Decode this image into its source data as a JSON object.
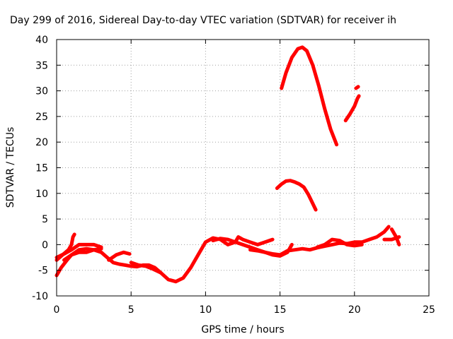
{
  "chart_data": {
    "type": "scatter",
    "title": "Day 299 of 2016, Sidereal Day-to-day VTEC variation (SDTVAR) for receiver ih",
    "xlabel": "GPS time / hours",
    "ylabel": "SDTVAR / TECUs",
    "xlim": [
      0,
      25
    ],
    "ylim": [
      -10,
      40
    ],
    "xticks": [
      "0",
      "5",
      "10",
      "15",
      "20",
      "25"
    ],
    "yticks": [
      "-10",
      "-5",
      "0",
      "5",
      "10",
      "15",
      "20",
      "25",
      "30",
      "35",
      "40"
    ],
    "grid": true,
    "marker_color": "#ff0000",
    "series": [
      {
        "segments": [
          [
            [
              0,
              -6
            ],
            [
              0.3,
              -4.5
            ],
            [
              0.7,
              -3
            ],
            [
              1.0,
              -2
            ],
            [
              1.5,
              -1
            ],
            [
              2,
              -0.8
            ],
            [
              2.5,
              -1
            ],
            [
              3,
              -1.5
            ],
            [
              3.4,
              -2.5
            ],
            [
              3.8,
              -3.5
            ],
            [
              4.2,
              -3.8
            ],
            [
              4.6,
              -4
            ],
            [
              5,
              -4.2
            ],
            [
              5.4,
              -4.3
            ],
            [
              5.8,
              -4
            ],
            [
              6.2,
              -4
            ],
            [
              6.6,
              -4.5
            ],
            [
              7,
              -5.5
            ],
            [
              7.5,
              -6.8
            ],
            [
              8,
              -7.2
            ],
            [
              8.5,
              -6.5
            ],
            [
              9,
              -4.5
            ],
            [
              9.5,
              -2
            ],
            [
              10,
              0.5
            ],
            [
              10.5,
              1.3
            ],
            [
              11,
              1
            ],
            [
              11.5,
              0
            ],
            [
              12,
              0.5
            ],
            [
              12.5,
              0
            ],
            [
              13,
              -0.5
            ],
            [
              13.5,
              -1
            ],
            [
              14,
              -1.5
            ],
            [
              14.5,
              -1.8
            ],
            [
              15,
              -2
            ],
            [
              15.5,
              -1.2
            ],
            [
              16,
              -1
            ],
            [
              16.5,
              -0.8
            ],
            [
              17,
              -1
            ],
            [
              17.5,
              -0.6
            ],
            [
              18,
              -0.3
            ],
            [
              18.5,
              0
            ],
            [
              19,
              0.3
            ],
            [
              19.5,
              0.2
            ],
            [
              20,
              0.5
            ],
            [
              20.5,
              0.5
            ],
            [
              21,
              1
            ],
            [
              21.5,
              1.5
            ],
            [
              22,
              2.5
            ],
            [
              22.3,
              3.5
            ]
          ],
          [
            [
              0,
              -2.5
            ],
            [
              0.5,
              -1.8
            ],
            [
              1,
              -1
            ],
            [
              1.5,
              0
            ],
            [
              2,
              0
            ],
            [
              2.5,
              0
            ],
            [
              3,
              -0.5
            ]
          ],
          [
            [
              0,
              -3
            ],
            [
              0.4,
              -2
            ],
            [
              0.8,
              -1
            ],
            [
              1,
              0
            ],
            [
              1.1,
              1.5
            ],
            [
              1.2,
              2
            ]
          ],
          [
            [
              0.5,
              -3
            ],
            [
              1,
              -2
            ],
            [
              1.5,
              -1.5
            ],
            [
              2,
              -1.5
            ],
            [
              2.5,
              -1
            ],
            [
              3,
              -0.8
            ]
          ],
          [
            [
              3.5,
              -3
            ],
            [
              4,
              -2
            ],
            [
              4.5,
              -1.5
            ],
            [
              4.9,
              -1.8
            ]
          ],
          [
            [
              5,
              -3.5
            ],
            [
              5.5,
              -4
            ],
            [
              6,
              -4.2
            ],
            [
              6.5,
              -4.8
            ],
            [
              7,
              -5.5
            ]
          ],
          [
            [
              10.5,
              0.8
            ],
            [
              11,
              1.2
            ],
            [
              11.5,
              1
            ],
            [
              12,
              0.5
            ],
            [
              12.2,
              1.5
            ],
            [
              12.5,
              1
            ],
            [
              13,
              0.5
            ],
            [
              13.5,
              0
            ],
            [
              14,
              0.5
            ],
            [
              14.5,
              1
            ]
          ],
          [
            [
              13,
              -1
            ],
            [
              13.5,
              -1.2
            ],
            [
              14,
              -1.5
            ],
            [
              14.5,
              -2
            ],
            [
              15,
              -2.2
            ],
            [
              15.5,
              -1.5
            ],
            [
              15.8,
              0
            ]
          ],
          [
            [
              17.5,
              -0.5
            ],
            [
              18,
              0
            ],
            [
              18.5,
              1
            ],
            [
              19,
              0.8
            ],
            [
              19.5,
              0
            ],
            [
              20,
              -0.2
            ],
            [
              20.5,
              0
            ]
          ],
          [
            [
              22,
              1
            ],
            [
              22.5,
              1
            ],
            [
              23,
              1.5
            ]
          ],
          [
            [
              22.5,
              3
            ],
            [
              22.8,
              1.5
            ],
            [
              23,
              0
            ]
          ],
          [
            [
              14.8,
              11
            ],
            [
              15.1,
              11.8
            ],
            [
              15.4,
              12.4
            ],
            [
              15.7,
              12.5
            ],
            [
              16,
              12.2
            ],
            [
              16.3,
              11.8
            ],
            [
              16.6,
              11.2
            ],
            [
              16.9,
              9.8
            ],
            [
              17.2,
              8
            ],
            [
              17.4,
              6.8
            ]
          ],
          [
            [
              15.1,
              30.5
            ],
            [
              15.4,
              33.5
            ],
            [
              15.8,
              36.5
            ],
            [
              16.2,
              38.2
            ],
            [
              16.5,
              38.5
            ],
            [
              16.8,
              37.8
            ],
            [
              17.2,
              35
            ],
            [
              17.6,
              31
            ],
            [
              18.0,
              26.5
            ],
            [
              18.4,
              22.5
            ],
            [
              18.8,
              19.5
            ]
          ],
          [
            [
              19.4,
              24.2
            ],
            [
              19.7,
              25.5
            ],
            [
              20,
              27
            ],
            [
              20.2,
              28.5
            ],
            [
              20.3,
              29
            ]
          ],
          [
            [
              20.1,
              30.5
            ],
            [
              20.25,
              30.8
            ]
          ]
        ]
      }
    ]
  }
}
